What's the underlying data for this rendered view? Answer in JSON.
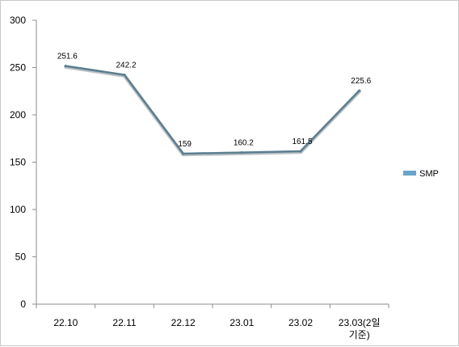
{
  "chart_data": {
    "type": "line",
    "categories": [
      "22.10",
      "22.11",
      "22.12",
      "23.01",
      "23.02",
      "23.03(2일 기준)"
    ],
    "category_lines": [
      [
        "22.10"
      ],
      [
        "22.11"
      ],
      [
        "22.12"
      ],
      [
        "23.01"
      ],
      [
        "23.02"
      ],
      [
        "23.03(2일",
        "기준)"
      ]
    ],
    "series": [
      {
        "name": "SMP",
        "values": [
          251.6,
          242.2,
          159,
          160.2,
          161.5,
          225.6
        ],
        "labels": [
          "251.6",
          "242.2",
          "159",
          "160.2",
          "161.5",
          "225.6"
        ],
        "color": "#5b7f8f"
      }
    ],
    "ylim": [
      0,
      300
    ],
    "yticks": [
      "0",
      "50",
      "100",
      "150",
      "200",
      "250",
      "300"
    ],
    "title": "",
    "xlabel": "",
    "ylabel": "",
    "grid": false,
    "legend": "right",
    "legend_color": "#6aa3c8"
  }
}
